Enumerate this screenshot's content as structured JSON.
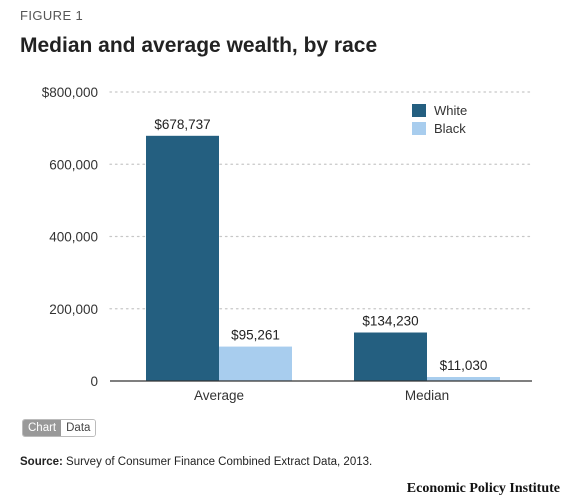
{
  "figure_label": "FIGURE 1",
  "colors": {
    "White": "#245f80",
    "Black": "#a8cdee",
    "grid": "#c7c7c7",
    "axis": "#333333"
  },
  "chart_data": {
    "type": "bar",
    "title": "Median and average wealth, by race",
    "categories": [
      "Average",
      "Median"
    ],
    "series": [
      {
        "name": "White",
        "values": [
          678737,
          134230
        ],
        "labels": [
          "$678,737",
          "$134,230"
        ]
      },
      {
        "name": "Black",
        "values": [
          95261,
          11030
        ],
        "labels": [
          "$95,261",
          "$11,030"
        ]
      }
    ],
    "ylim": [
      0,
      800000
    ],
    "yticks": [
      0,
      200000,
      400000,
      600000,
      800000
    ],
    "ytick_labels": [
      "0",
      "200,000",
      "400,000",
      "600,000",
      "$800,000"
    ],
    "xlabel": "",
    "ylabel": "",
    "grid": true,
    "legend_position": "top-right"
  },
  "toggle": {
    "chart_label": "Chart",
    "data_label": "Data"
  },
  "source": {
    "prefix": "Source:",
    "text": "Survey of Consumer Finance Combined Extract Data, 2013."
  },
  "publisher": "Economic Policy Institute"
}
